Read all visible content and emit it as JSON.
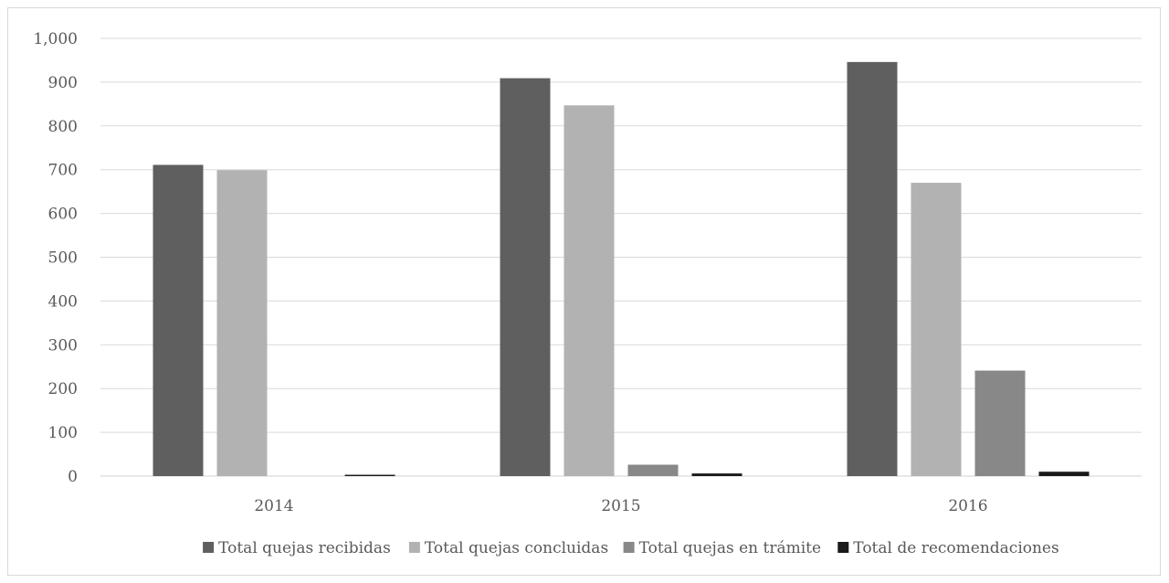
{
  "chart_data": {
    "type": "bar",
    "categories": [
      "2014",
      "2015",
      "2016"
    ],
    "series": [
      {
        "name": "Total quejas recibidas",
        "color": "#5f5f5f",
        "values": [
          711,
          909,
          946
        ]
      },
      {
        "name": "Total quejas concluidas",
        "color": "#b2b2b2",
        "values": [
          699,
          847,
          670
        ]
      },
      {
        "name": "Total quejas en trámite",
        "color": "#888888",
        "values": [
          0,
          26,
          241
        ]
      },
      {
        "name": "Total de recomendaciones",
        "color": "#1a1a1a",
        "values": [
          3,
          6,
          10
        ]
      }
    ],
    "ylim": [
      0,
      1000
    ],
    "yticks": [
      0,
      100,
      200,
      300,
      400,
      500,
      600,
      700,
      800,
      900,
      1000
    ],
    "ytick_labels": [
      "0",
      "100",
      "200",
      "300",
      "400",
      "500",
      "600",
      "700",
      "800",
      "900",
      "1,000"
    ],
    "title": "",
    "xlabel": "",
    "ylabel": "",
    "grid": true,
    "legend_position": "bottom"
  }
}
